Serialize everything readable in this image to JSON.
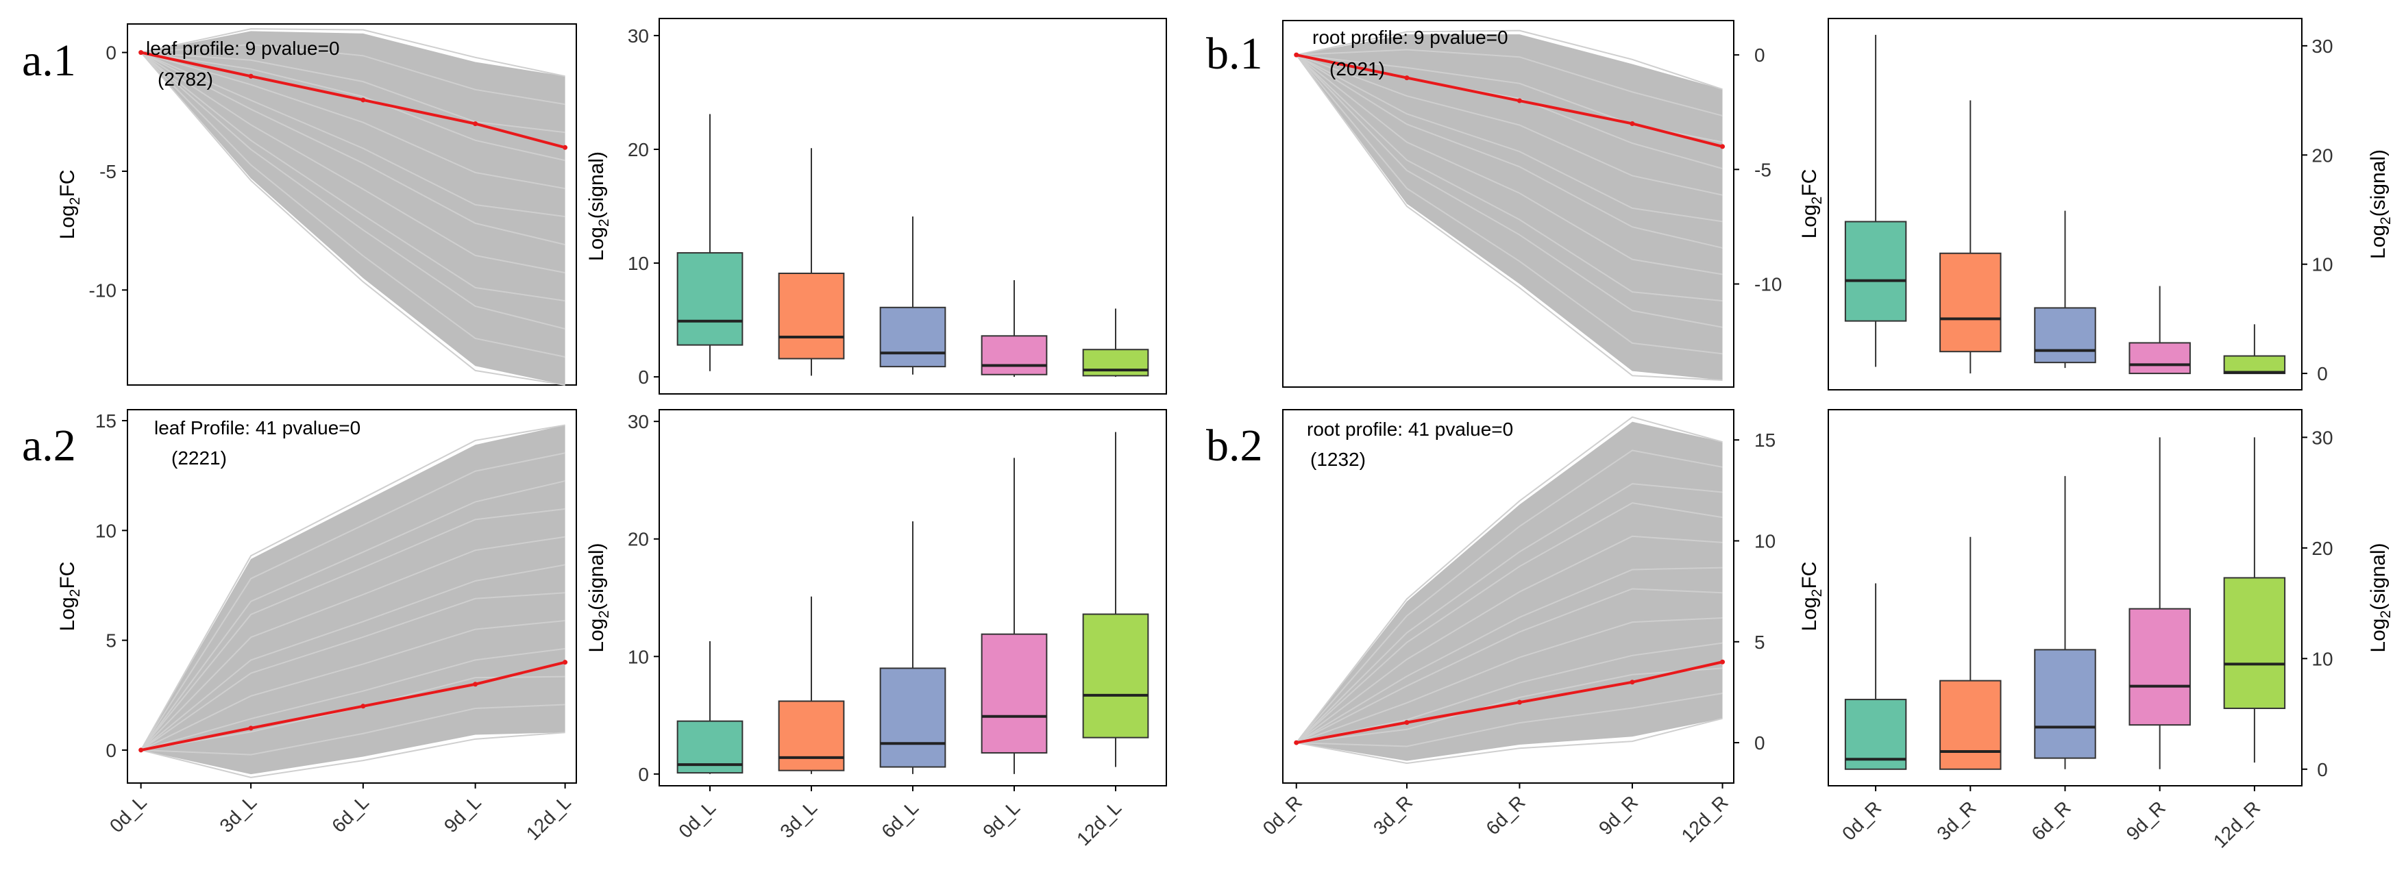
{
  "figure": {
    "panels": [
      {
        "id": "a1",
        "label": "a.1"
      },
      {
        "id": "a2",
        "label": "a.2"
      },
      {
        "id": "b1",
        "label": "b.1"
      },
      {
        "id": "b2",
        "label": "b.2"
      }
    ]
  },
  "chart_data": [
    {
      "id": "a1-profile",
      "type": "line",
      "annotation": "leaf profile: 9  pvalue=0",
      "count": "(2782)",
      "ylabel": "Log₂FC",
      "yticks": [
        0,
        -5,
        -10
      ],
      "ylim": [
        -14,
        1.2
      ],
      "x": [
        "0d_L",
        "3d_L",
        "6d_L",
        "9d_L",
        "12d_L"
      ],
      "trend": [
        0,
        -1,
        -2,
        -3,
        -4
      ],
      "lower_envelope": [
        0,
        -5.3,
        -9.5,
        -13.2,
        -14
      ],
      "upper_envelope": [
        0,
        0.9,
        0.8,
        -0.4,
        -1.0
      ],
      "trend_color": "#e8191b",
      "background_color": "#bdbdbd"
    },
    {
      "id": "a1-box",
      "type": "box",
      "ylabel": "Log₂(signal)",
      "yticks": [
        0,
        10,
        20,
        30
      ],
      "ylim": [
        -1.5,
        31.5
      ],
      "categories": [
        "0d_L",
        "3d_L",
        "6d_L",
        "9d_L",
        "12d_L"
      ],
      "boxes": [
        {
          "min": 0.5,
          "q1": 2.8,
          "median": 4.9,
          "q3": 10.9,
          "max": 23.1,
          "color": "#66c2a5"
        },
        {
          "min": 0.1,
          "q1": 1.6,
          "median": 3.5,
          "q3": 9.1,
          "max": 20.1,
          "color": "#fc8d62"
        },
        {
          "min": 0.2,
          "q1": 0.9,
          "median": 2.1,
          "q3": 6.1,
          "max": 14.1,
          "color": "#8da0cb"
        },
        {
          "min": 0.0,
          "q1": 0.2,
          "median": 1.0,
          "q3": 3.6,
          "max": 8.5,
          "color": "#e78ac3"
        },
        {
          "min": 0.0,
          "q1": 0.1,
          "median": 0.6,
          "q3": 2.4,
          "max": 6.0,
          "color": "#a6d854"
        }
      ]
    },
    {
      "id": "a2-profile",
      "type": "line",
      "annotation": "leaf Profile: 41 pvalue=0",
      "count": "(2221)",
      "ylabel": "Log₂FC",
      "yticks": [
        0,
        5,
        10,
        15
      ],
      "ylim": [
        -1.5,
        15.5
      ],
      "x": [
        "0d_L",
        "3d_L",
        "6d_L",
        "9d_L",
        "12d_L"
      ],
      "trend": [
        0,
        1,
        2,
        3,
        4
      ],
      "lower_envelope": [
        0,
        -1.1,
        -0.3,
        0.7,
        0.8
      ],
      "upper_envelope": [
        0,
        8.7,
        11.3,
        13.9,
        14.8
      ],
      "trend_color": "#e8191b",
      "background_color": "#bdbdbd"
    },
    {
      "id": "a2-box",
      "type": "box",
      "ylabel": "Log₂(signal)",
      "yticks": [
        0,
        10,
        20,
        30
      ],
      "ylim": [
        -1,
        31
      ],
      "categories": [
        "0d_L",
        "3d_L",
        "6d_L",
        "9d_L",
        "12d_L"
      ],
      "boxes": [
        {
          "min": 0.0,
          "q1": 0.1,
          "median": 0.8,
          "q3": 4.5,
          "max": 11.3,
          "color": "#66c2a5"
        },
        {
          "min": 0.0,
          "q1": 0.3,
          "median": 1.4,
          "q3": 6.2,
          "max": 15.1,
          "color": "#fc8d62"
        },
        {
          "min": 0.0,
          "q1": 0.6,
          "median": 2.6,
          "q3": 9.0,
          "max": 21.5,
          "color": "#8da0cb"
        },
        {
          "min": 0.0,
          "q1": 1.8,
          "median": 4.9,
          "q3": 11.9,
          "max": 26.9,
          "color": "#e78ac3"
        },
        {
          "min": 0.6,
          "q1": 3.1,
          "median": 6.7,
          "q3": 13.6,
          "max": 29.1,
          "color": "#a6d854"
        }
      ]
    },
    {
      "id": "b1-profile",
      "type": "line",
      "annotation": "root profile: 9 pvalue=0",
      "count": "(2021)",
      "ylabel": "Log₂FC",
      "yticks": [
        0,
        -5,
        -10
      ],
      "ylim": [
        -14.5,
        1.5
      ],
      "x": [
        "0d_R",
        "3d_R",
        "6d_R",
        "9d_R",
        "12d_R"
      ],
      "trend": [
        0,
        -1,
        -2,
        -3,
        -4
      ],
      "lower_envelope": [
        0,
        -6.5,
        -10.0,
        -13.8,
        -14.2
      ],
      "upper_envelope": [
        0,
        0.9,
        0.9,
        -0.4,
        -1.5
      ],
      "trend_color": "#e8191b",
      "background_color": "#bdbdbd"
    },
    {
      "id": "b1-box",
      "type": "box",
      "ylabel": "Log₂(signal)",
      "yticks": [
        0,
        10,
        20,
        30
      ],
      "ylim": [
        -1.5,
        32.5
      ],
      "categories": [
        "0d_R",
        "3d_R",
        "6d_R",
        "9d_R",
        "12d_R"
      ],
      "boxes": [
        {
          "min": 0.6,
          "q1": 4.8,
          "median": 8.5,
          "q3": 13.9,
          "max": 31.0,
          "color": "#66c2a5"
        },
        {
          "min": 0.0,
          "q1": 2.0,
          "median": 5.0,
          "q3": 11.0,
          "max": 25.0,
          "color": "#fc8d62"
        },
        {
          "min": 0.5,
          "q1": 1.0,
          "median": 2.1,
          "q3": 6.0,
          "max": 14.9,
          "color": "#8da0cb"
        },
        {
          "min": 0.0,
          "q1": 0.0,
          "median": 0.8,
          "q3": 2.8,
          "max": 8.0,
          "color": "#e78ac3"
        },
        {
          "min": 0.0,
          "q1": 0.0,
          "median": 0.1,
          "q3": 1.6,
          "max": 4.5,
          "color": "#a6d854"
        }
      ]
    },
    {
      "id": "b2-profile",
      "type": "line",
      "annotation": "root profile: 41 pvalue=0",
      "count": "(1232)",
      "ylabel": "Log₂FC",
      "yticks": [
        0,
        5,
        10,
        15
      ],
      "ylim": [
        -2,
        16.5
      ],
      "x": [
        "0d_R",
        "3d_R",
        "6d_R",
        "9d_R",
        "12d_R"
      ],
      "trend": [
        0,
        1,
        2,
        3,
        4
      ],
      "lower_envelope": [
        0,
        -0.9,
        -0.1,
        0.3,
        1.2
      ],
      "upper_envelope": [
        0,
        7.0,
        11.8,
        15.9,
        14.9
      ],
      "trend_color": "#e8191b",
      "background_color": "#bdbdbd"
    },
    {
      "id": "b2-box",
      "type": "box",
      "ylabel": "Log₂(signal)",
      "yticks": [
        0,
        10,
        20,
        30
      ],
      "ylim": [
        -1.5,
        32.5
      ],
      "categories": [
        "0d_R",
        "3d_R",
        "6d_R",
        "9d_R",
        "12d_R"
      ],
      "boxes": [
        {
          "min": 0.0,
          "q1": 0.0,
          "median": 0.9,
          "q3": 6.3,
          "max": 16.8,
          "color": "#66c2a5"
        },
        {
          "min": 0.0,
          "q1": 0.0,
          "median": 1.6,
          "q3": 8.0,
          "max": 21.0,
          "color": "#fc8d62"
        },
        {
          "min": 0.0,
          "q1": 1.0,
          "median": 3.8,
          "q3": 10.8,
          "max": 26.5,
          "color": "#8da0cb"
        },
        {
          "min": 0.0,
          "q1": 4.0,
          "median": 7.5,
          "q3": 14.5,
          "max": 30.0,
          "color": "#e78ac3"
        },
        {
          "min": 0.6,
          "q1": 5.5,
          "median": 9.5,
          "q3": 17.3,
          "max": 30.0,
          "color": "#a6d854"
        }
      ]
    }
  ]
}
